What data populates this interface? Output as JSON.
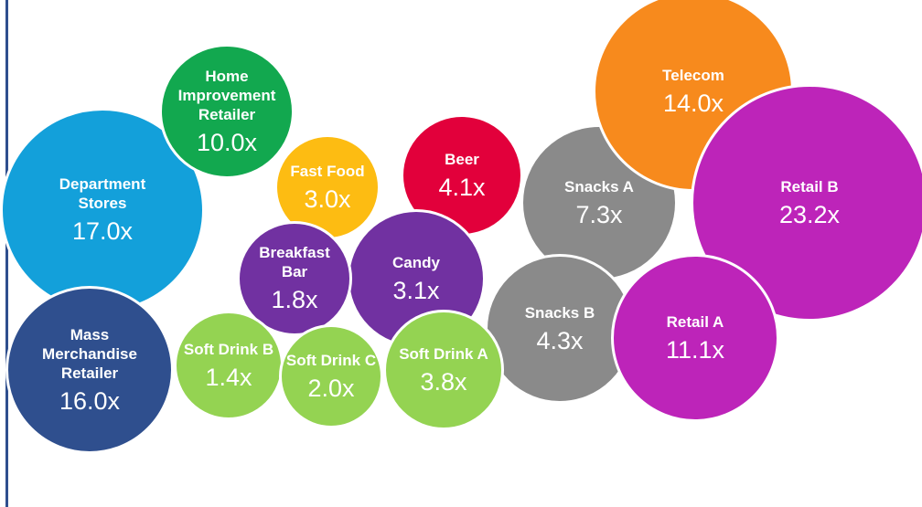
{
  "bubbles": [
    {
      "label": "Department Stores",
      "value": "17.0x",
      "color": "#13a0da"
    },
    {
      "label": "Mass Merchandise Retailer",
      "value": "16.0x",
      "color": "#2f4f8e"
    },
    {
      "label": "Home Improvement Retailer",
      "value": "10.0x",
      "color": "#12a84f"
    },
    {
      "label": "Fast Food",
      "value": "3.0x",
      "color": "#fdbc12"
    },
    {
      "label": "Snacks A",
      "value": "7.3x",
      "color": "#8a8a8a"
    },
    {
      "label": "Beer",
      "value": "4.1x",
      "color": "#e2003b"
    },
    {
      "label": "Telecom",
      "value": "14.0x",
      "color": "#f78a1d"
    },
    {
      "label": "Retail B",
      "value": "23.2x",
      "color": "#bd24b9"
    },
    {
      "label": "Candy",
      "value": "3.1x",
      "color": "#7131a1"
    },
    {
      "label": "Breakfast Bar",
      "value": "1.8x",
      "color": "#7131a1"
    },
    {
      "label": "Snacks B",
      "value": "4.3x",
      "color": "#8a8a8a"
    },
    {
      "label": "Retail A",
      "value": "11.1x",
      "color": "#bd24b9"
    },
    {
      "label": "Soft Drink B",
      "value": "1.4x",
      "color": "#94d352"
    },
    {
      "label": "Soft Drink C",
      "value": "2.0x",
      "color": "#94d352"
    },
    {
      "label": "Soft Drink A",
      "value": "3.8x",
      "color": "#94d352"
    }
  ]
}
